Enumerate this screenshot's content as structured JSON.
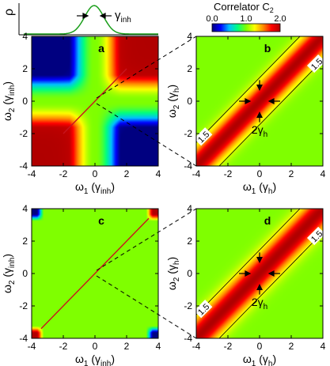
{
  "figure": {
    "rho_label": "ρ",
    "gamma_inh_label": "γ",
    "gamma_inh_sub": "inh",
    "colorbar_title": "Correlator C",
    "colorbar_title_sub": "2",
    "colorbar_ticks": [
      "0.0",
      "1.0",
      "2.0"
    ],
    "colormap": [
      "#000080",
      "#0000ff",
      "#00bfff",
      "#00ff7f",
      "#7fff00",
      "#ffff00",
      "#ff8c00",
      "#ff0000",
      "#b00000"
    ],
    "diag_line_color": "#c8141e",
    "gauss_color": "#1a9e1a"
  },
  "chart_data": [
    {
      "id": "a",
      "panel_label": "a",
      "type": "heatmap",
      "xlabel_symbol": "ω",
      "xlabel_sub": "1",
      "xlabel_unit": "(γ",
      "xlabel_unit_sub": "inh",
      "xlabel_close": ")",
      "ylabel_symbol": "ω",
      "ylabel_sub": "2",
      "ylabel_unit": "(γ",
      "ylabel_unit_sub": "inh",
      "ylabel_close": ")",
      "xlim": [
        -4,
        4
      ],
      "ylim": [
        -4,
        4
      ],
      "xticks": [
        "-4",
        "-2",
        "0",
        "2",
        "4"
      ],
      "yticks": [
        "-4",
        "-2",
        "0",
        "2",
        "4"
      ],
      "description_values": {
        "quadrant_same_sign": 2.0,
        "quadrant_opposite_sign": 0.0,
        "center": 1.0
      }
    },
    {
      "id": "b",
      "panel_label": "b",
      "type": "heatmap",
      "xlabel_symbol": "ω",
      "xlabel_sub": "1",
      "xlabel_unit": "(γ",
      "xlabel_unit_sub": "h",
      "xlabel_close": ")",
      "ylabel_symbol": "ω",
      "ylabel_sub": "2",
      "ylabel_unit": "(γ",
      "ylabel_unit_sub": "h",
      "ylabel_close": ")",
      "xlim": [
        -4,
        4
      ],
      "ylim": [
        -4,
        4
      ],
      "xticks": [
        "-4",
        "-2",
        "0",
        "2",
        "4"
      ],
      "yticks": [
        "-4",
        "-2",
        "0",
        "2",
        "4"
      ],
      "contour_labels": [
        "1.5",
        "1.5"
      ],
      "width_label": "2γ",
      "width_label_sub": "h"
    },
    {
      "id": "c",
      "panel_label": "c",
      "type": "heatmap",
      "xlabel_symbol": "ω",
      "xlabel_sub": "1",
      "xlabel_unit": "(γ",
      "xlabel_unit_sub": "inh",
      "xlabel_close": ")",
      "ylabel_symbol": "ω",
      "ylabel_sub": "2",
      "ylabel_unit": "(γ",
      "ylabel_unit_sub": "inh",
      "ylabel_close": ")",
      "xlim": [
        -4,
        4
      ],
      "ylim": [
        -4,
        4
      ],
      "xticks": [
        "-4",
        "-2",
        "0",
        "2",
        "4"
      ],
      "yticks": [
        "-4",
        "-2",
        "0",
        "2",
        "4"
      ]
    },
    {
      "id": "d",
      "panel_label": "d",
      "type": "heatmap",
      "xlabel_symbol": "ω",
      "xlabel_sub": "1",
      "xlabel_unit": "(γ",
      "xlabel_unit_sub": "h",
      "xlabel_close": ")",
      "ylabel_symbol": "ω",
      "ylabel_sub": "2",
      "ylabel_unit": "(γ",
      "ylabel_unit_sub": "h",
      "ylabel_close": ")",
      "xlim": [
        -4,
        4
      ],
      "ylim": [
        -4,
        4
      ],
      "xticks": [
        "-4",
        "-2",
        "0",
        "2",
        "4"
      ],
      "yticks": [
        "-4",
        "-2",
        "0",
        "2",
        "4"
      ],
      "contour_labels": [
        "1.5",
        "1.5"
      ],
      "width_label": "2γ",
      "width_label_sub": "h"
    }
  ]
}
